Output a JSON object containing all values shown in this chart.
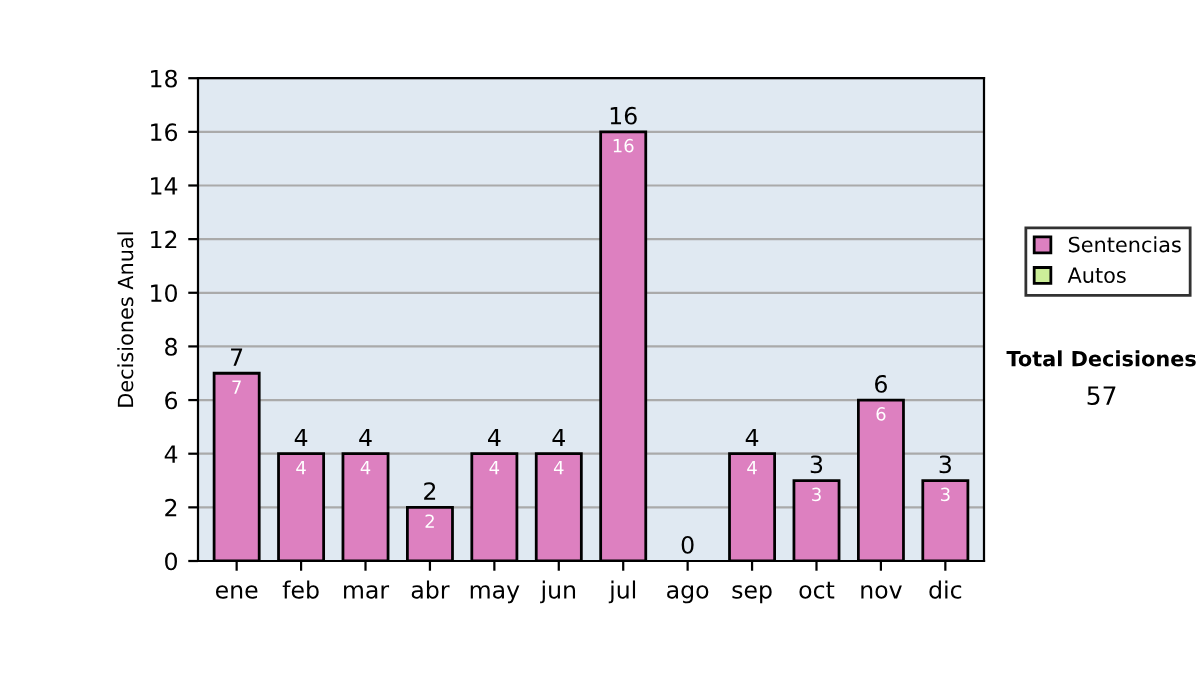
{
  "chart_data": {
    "type": "bar",
    "stacked": true,
    "ylabel": "Decisiones Anual",
    "categories": [
      "ene",
      "feb",
      "mar",
      "abr",
      "may",
      "jun",
      "jul",
      "ago",
      "sep",
      "oct",
      "nov",
      "dic"
    ],
    "series": [
      {
        "name": "Sentencias",
        "color": "#dd80c0",
        "values": [
          7,
          4,
          4,
          2,
          4,
          4,
          16,
          0,
          4,
          3,
          6,
          3
        ],
        "value_labels": [
          "7",
          "4",
          "4",
          "2",
          "4",
          "4",
          "16",
          null,
          "4",
          "3",
          "6",
          "3"
        ]
      },
      {
        "name": "Autos",
        "color": "#ccee99",
        "values": [
          0,
          0,
          0,
          0,
          0,
          0,
          0,
          0,
          0,
          0,
          0,
          0
        ]
      }
    ],
    "totals": [
      "7",
      "4",
      "4",
      "2",
      "4",
      "4",
      "16",
      "0",
      "4",
      "3",
      "6",
      "3"
    ],
    "ylim": [
      0,
      18
    ],
    "yticks": [
      0,
      2,
      4,
      6,
      8,
      10,
      12,
      14,
      16,
      18
    ],
    "grid": "y",
    "legend": "right",
    "annotations": [
      "Total Decisiones",
      "57"
    ]
  }
}
